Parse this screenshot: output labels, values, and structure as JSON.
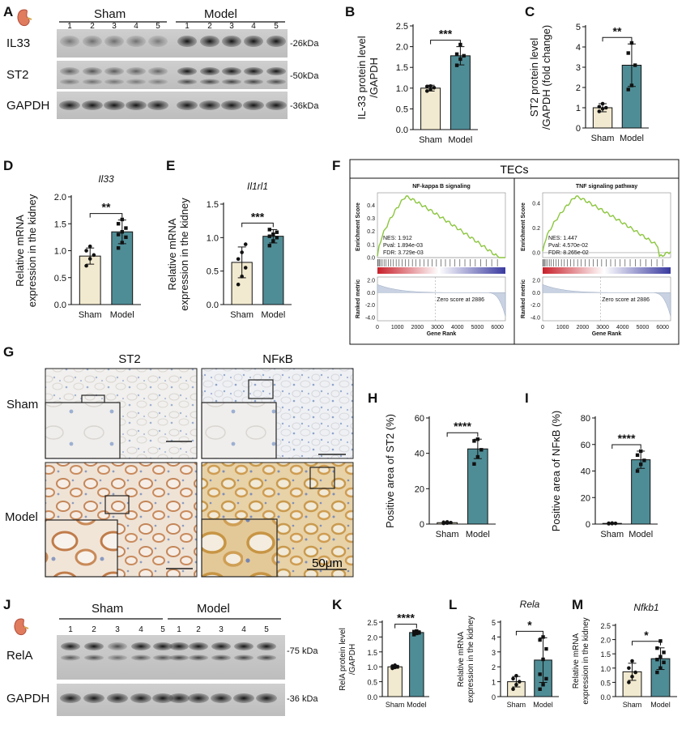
{
  "panel_letters": [
    "A",
    "B",
    "C",
    "D",
    "E",
    "F",
    "G",
    "H",
    "I",
    "J",
    "K",
    "L",
    "M"
  ],
  "colors": {
    "sham": "#f2ead0",
    "model": "#4f8d96",
    "gsea_line": "#8cc63f"
  },
  "blot_A": {
    "group_sham": "Sham",
    "group_model": "Model",
    "lanes": [
      "1",
      "2",
      "3",
      "4",
      "5",
      "1",
      "2",
      "3",
      "4",
      "5"
    ],
    "rows": [
      {
        "label": "IL33",
        "kda": "-26kDa"
      },
      {
        "label": "ST2",
        "kda": "-50kDa"
      },
      {
        "label": "GAPDH",
        "kda": "-36kDa"
      }
    ]
  },
  "blot_J": {
    "group_sham": "Sham",
    "group_model": "Model",
    "lanes": [
      "1",
      "2",
      "3",
      "4",
      "5",
      "1",
      "2",
      "3",
      "4",
      "5"
    ],
    "rows": [
      {
        "label": "RelA",
        "kda": "-75 kDa"
      },
      {
        "label": "GAPDH",
        "kda": "-36 kDa"
      }
    ]
  },
  "gsea": {
    "title": "TECs",
    "xlabel": "Gene Rank",
    "ylabel_top": "Enrichment Score",
    "ylabel_bottom": "Ranked metric",
    "zero_label": "Zero score at 2886",
    "x_ticks": [
      "0",
      "1000",
      "2000",
      "3000",
      "4000",
      "5000",
      "6000"
    ],
    "panels": [
      {
        "title": "NF-kappa B signaling",
        "nes": "NES: 1.912",
        "pval": "Pval: 1.894e-03",
        "fdr": "FDR: 3.729e-03",
        "es_ticks": [
          "0.4",
          "0.3",
          "0.2",
          "0.1",
          "0.0"
        ],
        "es_max": 0.47,
        "es_min": 0.0
      },
      {
        "title": "TNF signaling pathway",
        "nes": "NES: 1.447",
        "pval": "Pval: 4.570e-02",
        "fdr": "FDR: 8.265e-02",
        "es_ticks": [
          "0.4",
          "0.2",
          "0.0"
        ],
        "es_max": 0.46,
        "es_min": -0.04
      }
    ],
    "metric_ticks": [
      "2.0",
      "0.0",
      "-2.0",
      "-4.0"
    ]
  },
  "ihc": {
    "col_labels": [
      "ST2",
      "NFκB"
    ],
    "row_labels": [
      "Sham",
      "Model"
    ],
    "scale": "50μm"
  },
  "chart_data": [
    {
      "panel": "B",
      "type": "bar",
      "categories": [
        "Sham",
        "Model"
      ],
      "values": [
        1.0,
        1.78
      ],
      "errors": [
        0.07,
        0.22
      ],
      "ylabel": "IL-33 protein level\n/GAPDH",
      "ylim": [
        0,
        2.5
      ],
      "yticks": [
        "0.0",
        "0.5",
        "1.0",
        "1.5",
        "2.0",
        "2.5"
      ],
      "significance": "***",
      "points": [
        [
          0.93,
          0.97,
          1.01,
          1.04,
          1.05
        ],
        [
          1.55,
          1.7,
          1.78,
          1.82,
          2.05
        ]
      ]
    },
    {
      "panel": "C",
      "type": "bar",
      "categories": [
        "Sham",
        "Model"
      ],
      "values": [
        1.0,
        3.1
      ],
      "errors": [
        0.2,
        1.05
      ],
      "ylabel": "ST2 protein level\n/GAPDH (fold change)",
      "ylim": [
        0,
        5
      ],
      "yticks": [
        "0",
        "1",
        "2",
        "3",
        "4",
        "5"
      ],
      "significance": "**",
      "points": [
        [
          0.82,
          0.95,
          1.0,
          1.05,
          1.2
        ],
        [
          1.9,
          2.1,
          3.1,
          3.7,
          4.2
        ]
      ]
    },
    {
      "panel": "D",
      "type": "bar",
      "gene": "Il33",
      "categories": [
        "Sham",
        "Model"
      ],
      "values": [
        0.9,
        1.35
      ],
      "errors": [
        0.15,
        0.22
      ],
      "ylabel": "Relative mRNA\nexpression in the kidney",
      "ylim": [
        0,
        2.0
      ],
      "yticks": [
        "0.0",
        "0.5",
        "1.0",
        "1.5",
        "2.0"
      ],
      "significance": "**",
      "points": [
        [
          0.72,
          0.85,
          0.92,
          1.0,
          1.08
        ],
        [
          1.05,
          1.15,
          1.25,
          1.3,
          1.35,
          1.42,
          1.5,
          1.58
        ]
      ]
    },
    {
      "panel": "E",
      "type": "bar",
      "gene": "Il1rl1",
      "categories": [
        "Sham",
        "Model"
      ],
      "values": [
        0.63,
        1.02
      ],
      "errors": [
        0.23,
        0.1
      ],
      "ylabel": "Relative mRNA\nexpression in the kidney",
      "ylim": [
        0,
        1.5
      ],
      "yticks": [
        "0.0",
        "0.5",
        "1.0",
        "1.5"
      ],
      "significance": "***",
      "points": [
        [
          0.3,
          0.42,
          0.55,
          0.68,
          0.78,
          0.9
        ],
        [
          0.88,
          0.95,
          1.0,
          1.02,
          1.05,
          1.08,
          1.12
        ]
      ]
    },
    {
      "panel": "H",
      "type": "bar",
      "categories": [
        "Sham",
        "Model"
      ],
      "values": [
        0.8,
        42.5
      ],
      "errors": [
        0.3,
        5.5
      ],
      "ylabel": "Positive area of ST2 (%)",
      "ylim": [
        0,
        60
      ],
      "yticks": [
        "0",
        "20",
        "40",
        "60"
      ],
      "significance": "****",
      "points": [
        [
          0.4,
          0.6,
          0.8,
          1.0,
          1.2
        ],
        [
          34,
          38,
          42,
          47,
          48
        ]
      ]
    },
    {
      "panel": "I",
      "type": "bar",
      "categories": [
        "Sham",
        "Model"
      ],
      "values": [
        0.5,
        48.5
      ],
      "errors": [
        0.3,
        6.5
      ],
      "ylabel": "Positive area of NFκB (%)",
      "ylim": [
        0,
        80
      ],
      "yticks": [
        "0",
        "20",
        "40",
        "60",
        "80"
      ],
      "significance": "****",
      "points": [
        [
          0.3,
          0.4,
          0.5,
          0.6,
          0.7
        ],
        [
          40,
          45,
          48,
          52,
          55
        ]
      ]
    },
    {
      "panel": "K",
      "type": "bar",
      "categories": [
        "Sham",
        "Model"
      ],
      "values": [
        1.0,
        2.15
      ],
      "errors": [
        0.05,
        0.06
      ],
      "ylabel": "RelA protein level\n/GAPDH",
      "ylim": [
        0,
        2.5
      ],
      "yticks": [
        "0.0",
        "0.5",
        "1.0",
        "1.5",
        "2.0",
        "2.5"
      ],
      "significance": "****",
      "points": [
        [
          0.95,
          0.98,
          1.0,
          1.02,
          1.05
        ],
        [
          2.08,
          2.12,
          2.15,
          2.18,
          2.2
        ]
      ]
    },
    {
      "panel": "L",
      "type": "bar",
      "gene": "Rela",
      "categories": [
        "Sham",
        "Model"
      ],
      "values": [
        1.0,
        2.45
      ],
      "errors": [
        0.35,
        1.5
      ],
      "ylabel": "Relative mRNA\nexpression in the kidney",
      "ylim": [
        0,
        5
      ],
      "yticks": [
        "0",
        "1",
        "2",
        "3",
        "4",
        "5"
      ],
      "significance": "*",
      "points": [
        [
          0.5,
          0.8,
          1.0,
          1.2,
          1.4
        ],
        [
          0.5,
          0.8,
          1.2,
          1.5,
          2.5,
          3.2,
          3.8,
          4.0
        ]
      ]
    },
    {
      "panel": "M",
      "type": "bar",
      "gene": "Nfkb1",
      "categories": [
        "Sham",
        "Model"
      ],
      "values": [
        0.87,
        1.33
      ],
      "errors": [
        0.3,
        0.38
      ],
      "ylabel": "Relative mRNA\nexpression in the kidney",
      "ylim": [
        0,
        2.5
      ],
      "yticks": [
        "0.0",
        "0.5",
        "1.0",
        "1.5",
        "2.0",
        "2.5"
      ],
      "significance": "*",
      "points": [
        [
          0.5,
          0.7,
          0.85,
          1.0,
          1.25
        ],
        [
          0.85,
          1.0,
          1.2,
          1.3,
          1.4,
          1.55,
          1.7,
          1.95
        ]
      ]
    }
  ]
}
